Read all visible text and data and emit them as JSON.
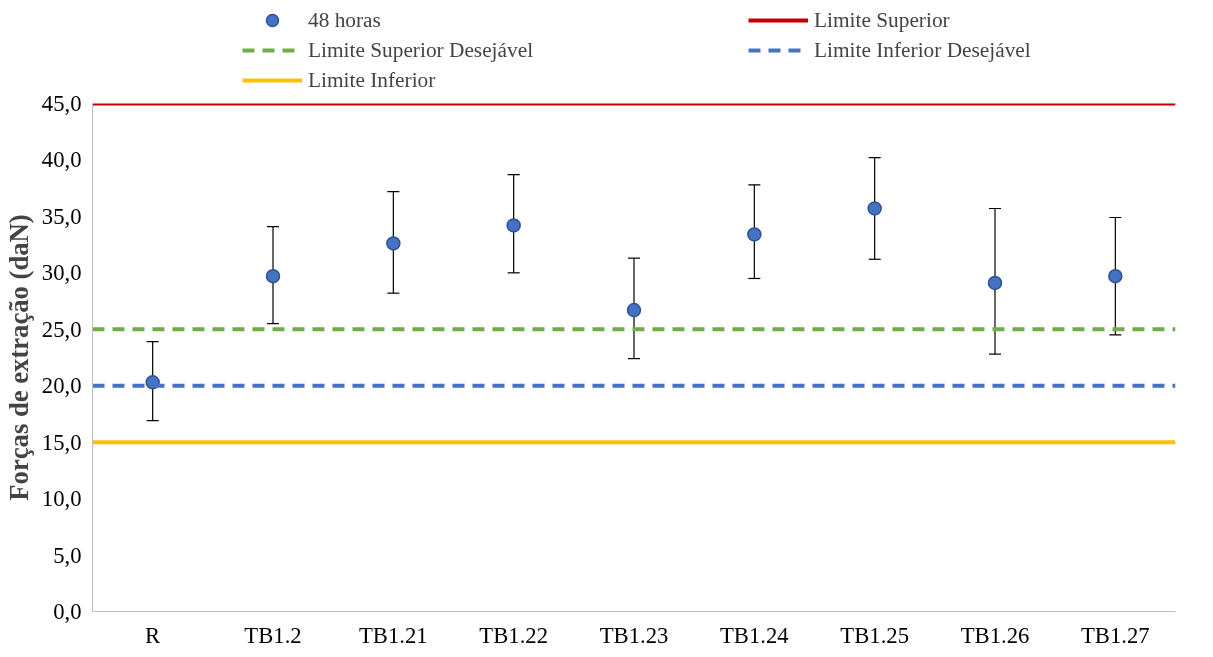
{
  "chart_data": {
    "type": "scatter",
    "ylabel": "Forças de extração (daN)",
    "categories": [
      "R",
      "TB1.2",
      "TB1.21",
      "TB1.22",
      "TB1.23",
      "TB1.24",
      "TB1.25",
      "TB1.26",
      "TB1.27"
    ],
    "series": [
      {
        "name": "48 horas",
        "color": "#4472c4",
        "values": [
          20.3,
          29.7,
          32.6,
          34.2,
          26.7,
          33.4,
          35.7,
          29.1,
          29.7
        ],
        "errors": [
          [
            16.9,
            23.9
          ],
          [
            25.5,
            34.1
          ],
          [
            28.2,
            37.2
          ],
          [
            30.0,
            38.7
          ],
          [
            22.4,
            31.3
          ],
          [
            29.5,
            37.8
          ],
          [
            31.2,
            40.2
          ],
          [
            22.8,
            35.7
          ],
          [
            24.5,
            34.9
          ]
        ]
      }
    ],
    "ref_lines": [
      {
        "axis": "y",
        "value": 45,
        "label": "Limite Superior",
        "color": "#c00000",
        "line_style": "solid"
      },
      {
        "axis": "y",
        "value": 25,
        "label": "Limite Superior Desejável",
        "color": "#70ad47",
        "line_style": "dashed"
      },
      {
        "axis": "y",
        "value": 20,
        "label": "Limite Inferior Desejável",
        "color": "#4472c4",
        "line_style": "dashed"
      },
      {
        "axis": "y",
        "value": 15,
        "label": "Limite Inferior",
        "color": "#ffc000",
        "line_style": "solid"
      }
    ],
    "ylim": [
      0,
      45
    ],
    "yticks": [
      {
        "value": 0,
        "label": "0,0"
      },
      {
        "value": 5,
        "label": "5,0"
      },
      {
        "value": 10,
        "label": "10,0"
      },
      {
        "value": 15,
        "label": "15,0"
      },
      {
        "value": 20,
        "label": "20,0"
      },
      {
        "value": 25,
        "label": "25,0"
      },
      {
        "value": 30,
        "label": "30,0"
      },
      {
        "value": 35,
        "label": "35,0"
      },
      {
        "value": 40,
        "label": "40,0"
      },
      {
        "value": 45,
        "label": "45,0"
      }
    ],
    "grid": false,
    "legend": "top",
    "marker": "circle"
  }
}
